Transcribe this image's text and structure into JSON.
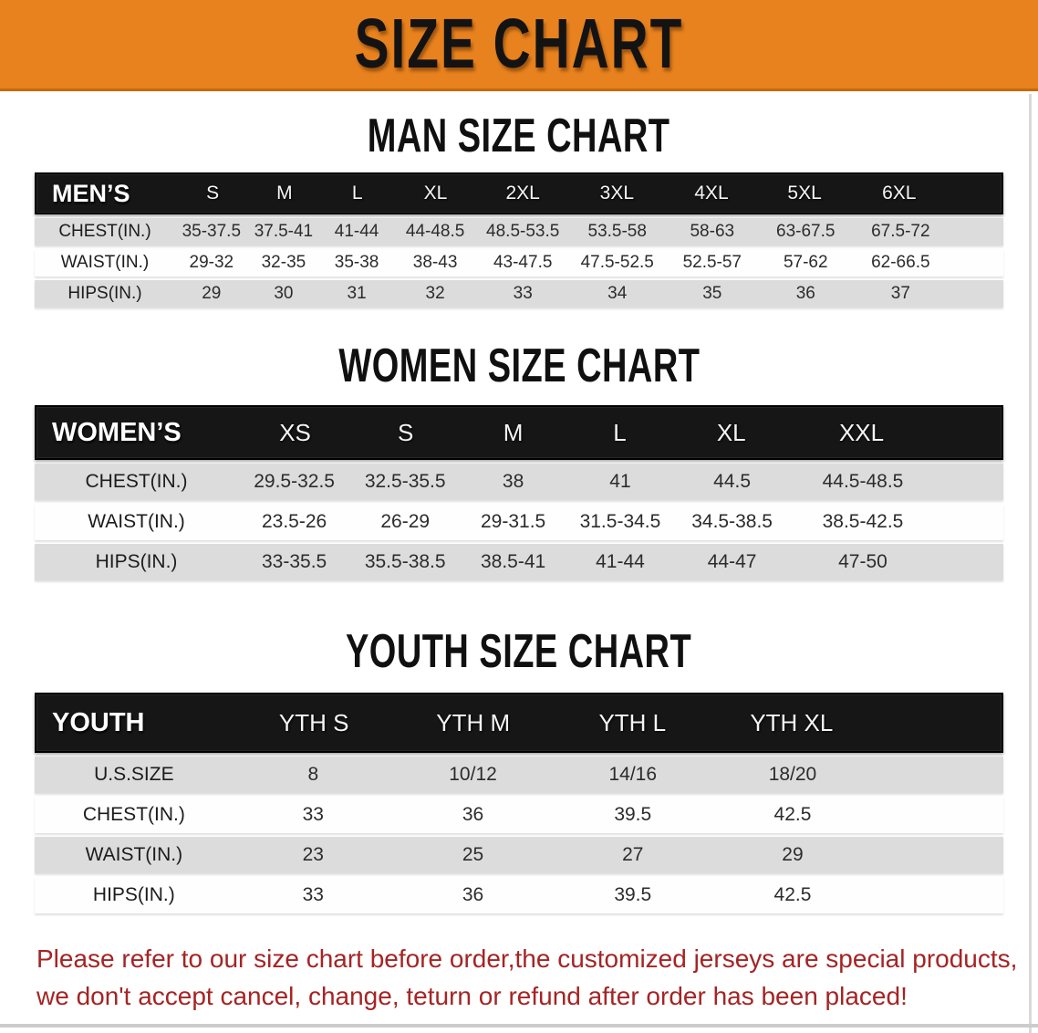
{
  "banner": {
    "title": "SIZE CHART"
  },
  "men": {
    "section_title": "MAN SIZE CHART",
    "header": {
      "label": "MEN’S",
      "sizes": [
        "S",
        "M",
        "L",
        "XL",
        "2XL",
        "3XL",
        "4XL",
        "5XL",
        "6XL"
      ]
    },
    "rows": [
      {
        "label": "CHEST(IN.)",
        "values": [
          "35-37.5",
          "37.5-41",
          "41-44",
          "44-48.5",
          "48.5-53.5",
          "53.5-58",
          "58-63",
          "63-67.5",
          "67.5-72"
        ]
      },
      {
        "label": "WAIST(IN.)",
        "values": [
          "29-32",
          "32-35",
          "35-38",
          "38-43",
          "43-47.5",
          "47.5-52.5",
          "52.5-57",
          "57-62",
          "62-66.5"
        ]
      },
      {
        "label": "HIPS(IN.)",
        "values": [
          "29",
          "30",
          "31",
          "32",
          "33",
          "34",
          "35",
          "36",
          "37"
        ]
      }
    ]
  },
  "women": {
    "section_title": "WOMEN SIZE CHART",
    "header": {
      "label": "WOMEN’S",
      "sizes": [
        "XS",
        "S",
        "M",
        "L",
        "XL",
        "XXL"
      ]
    },
    "rows": [
      {
        "label": "CHEST(IN.)",
        "values": [
          "29.5-32.5",
          "32.5-35.5",
          "38",
          "41",
          "44.5",
          "44.5-48.5"
        ]
      },
      {
        "label": "WAIST(IN.)",
        "values": [
          "23.5-26",
          "26-29",
          "29-31.5",
          "31.5-34.5",
          "34.5-38.5",
          "38.5-42.5"
        ]
      },
      {
        "label": "HIPS(IN.)",
        "values": [
          "33-35.5",
          "35.5-38.5",
          "38.5-41",
          "41-44",
          "44-47",
          "47-50"
        ]
      }
    ]
  },
  "youth": {
    "section_title": "YOUTH SIZE CHART",
    "header": {
      "label": "YOUTH",
      "sizes": [
        "YTH S",
        "YTH M",
        "YTH L",
        "YTH XL"
      ]
    },
    "rows": [
      {
        "label": "U.S.SIZE",
        "values": [
          "8",
          "10/12",
          "14/16",
          "18/20"
        ]
      },
      {
        "label": "CHEST(IN.)",
        "values": [
          "33",
          "36",
          "39.5",
          "42.5"
        ]
      },
      {
        "label": "WAIST(IN.)",
        "values": [
          "23",
          "25",
          "27",
          "29"
        ]
      },
      {
        "label": "HIPS(IN.)",
        "values": [
          "33",
          "36",
          "39.5",
          "42.5"
        ]
      }
    ]
  },
  "disclaimer": {
    "line1": "Please refer to our size chart before order,the customized jerseys are special products,",
    "line2": "we don't accept cancel, change, teturn or refund after order has been placed!"
  },
  "colors": {
    "banner_orange": "#e8821e",
    "header_bar_black": "#161616",
    "stripe_gray": "#dcdcdc",
    "disclaimer_red": "#a52424"
  }
}
